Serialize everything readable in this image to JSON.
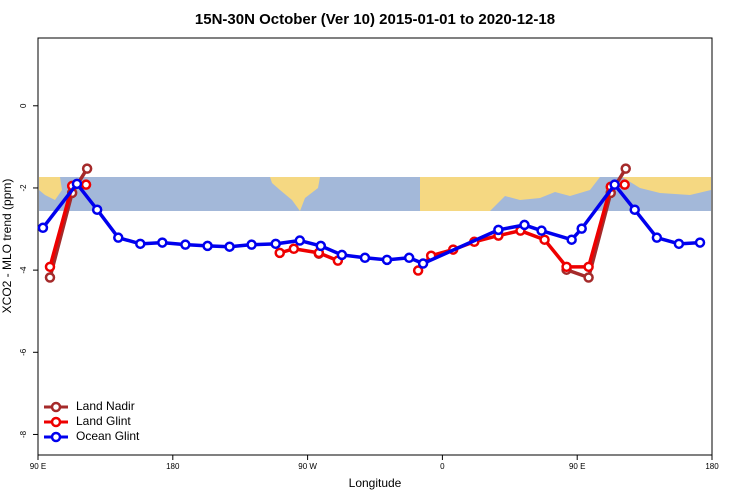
{
  "chart_data": {
    "type": "line",
    "title": "15N-30N October (Ver 10)   2015-01-01 to 2020-12-18",
    "xlabel": "Longitude",
    "ylabel": "XCO2 - MLO trend (ppm)",
    "xlim": [
      90,
      540
    ],
    "ylim": [
      -8.5,
      1.65
    ],
    "xticks": [
      {
        "value": 90,
        "label": "90 E"
      },
      {
        "value": 180,
        "label": "180"
      },
      {
        "value": 270,
        "label": "90 W"
      },
      {
        "value": 360,
        "label": "0"
      },
      {
        "value": 450,
        "label": "90 E"
      },
      {
        "value": 540,
        "label": "180"
      }
    ],
    "yticks": [
      0,
      -2,
      -4,
      -6,
      -8
    ],
    "legend": "bottom-left",
    "series": [
      {
        "name": "Land Nadir",
        "color": "#a52a2a",
        "x": [
          98,
          112.8,
          122.8,
          277.5,
          442.9,
          457.6,
          472.4,
          482.4
        ],
        "values": [
          -4.18,
          -2.12,
          -1.53,
          -3.6,
          -3.99,
          -4.18,
          -2.12,
          -1.53
        ],
        "breaks": [
          3,
          4
        ]
      },
      {
        "name": "Land Glint",
        "color": "#ee0000",
        "x": [
          98,
          112.8,
          122.1,
          null,
          251.4,
          260.8,
          277.5,
          290.2,
          null,
          343.8,
          352.5,
          367.2,
          381.3,
          397.4,
          412.1,
          428.2,
          442.9,
          457.6,
          472.4,
          481.7
        ],
        "values": [
          -3.92,
          -1.95,
          -1.92,
          null,
          -3.58,
          -3.48,
          -3.58,
          -3.77,
          null,
          -4.01,
          -3.65,
          -3.5,
          -3.31,
          -3.16,
          -3.04,
          -3.26,
          -3.92,
          -3.92,
          -1.97,
          -1.92
        ]
      },
      {
        "name": "Ocean Glint",
        "color": "#0000ee",
        "x": [
          93.3,
          116,
          129.5,
          143.6,
          158.3,
          173,
          188.4,
          203.2,
          217.9,
          232.6,
          248.7,
          264.8,
          278.8,
          292.9,
          308.3,
          323,
          337.8,
          347.1,
          397.4,
          414.8,
          426.2,
          446.3,
          453,
          475,
          488.4,
          503.2,
          517.9,
          532
        ],
        "values": [
          -2.97,
          -1.9,
          -2.53,
          -3.21,
          -3.36,
          -3.33,
          -3.38,
          -3.41,
          -3.43,
          -3.38,
          -3.36,
          -3.28,
          -3.41,
          -3.63,
          -3.7,
          -3.75,
          -3.7,
          -3.84,
          -3.02,
          -2.9,
          -3.04,
          -3.26,
          -2.99,
          -1.92,
          -2.53,
          -3.21,
          -3.36,
          -3.33
        ]
      }
    ]
  }
}
